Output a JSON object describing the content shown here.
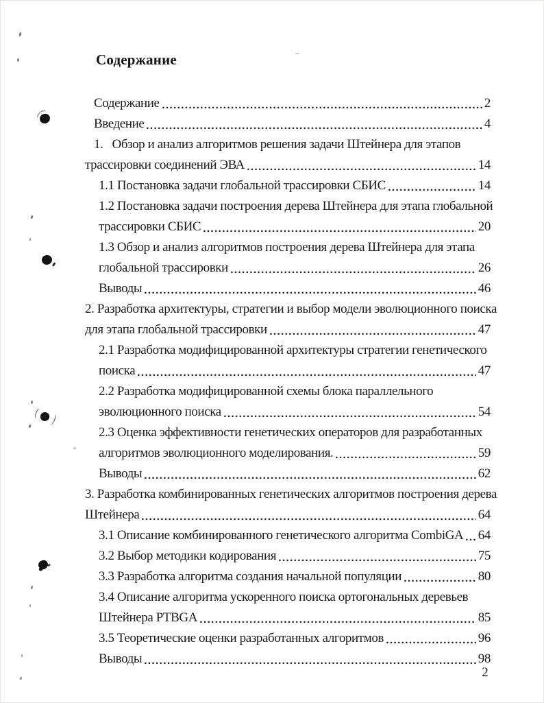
{
  "document": {
    "heading": "Содержание",
    "footer_page_number": "2"
  },
  "toc": {
    "lines": [
      {
        "text": "Содержание",
        "page": "2",
        "indent": "chapter_first"
      },
      {
        "text": "Введение",
        "page": "4",
        "indent": "chapter_first"
      },
      {
        "text": "1.   Обзор и анализ алгоритмов решения задачи Штейнера для этапов",
        "indent": "chapter_first"
      },
      {
        "text": "трассировки соединений ЭВА",
        "page": "14",
        "indent": "chapter"
      },
      {
        "text": "1.1 Постановка задачи глобальной трассировки СБИС",
        "page": "14",
        "indent": "sub"
      },
      {
        "text": "1.2 Постановка задачи построения дерева Штейнера для этапа глобальной",
        "indent": "sub"
      },
      {
        "text": "трассировки СБИС",
        "page": "20",
        "indent": "sub"
      },
      {
        "text": "1.3 Обзор и анализ алгоритмов построения дерева Штейнера для этапа",
        "indent": "sub"
      },
      {
        "text": "глобальной трассировки",
        "page": "26",
        "indent": "sub"
      },
      {
        "text": "Выводы",
        "page": "46",
        "indent": "sub"
      },
      {
        "text": "2. Разработка архитектуры, стратегии и выбор модели эволюционного поиска",
        "indent": "chapter"
      },
      {
        "text": "для этапа глобальной трассировки",
        "page": "47",
        "indent": "chapter"
      },
      {
        "text": "2.1 Разработка модифицированной архитектуры стратегии генетического",
        "indent": "sub"
      },
      {
        "text": "поиска",
        "page": "47",
        "indent": "sub"
      },
      {
        "text": "2.2 Разработка модифицированной схемы блока параллельного",
        "indent": "sub"
      },
      {
        "text": "эволюционного поиска",
        "page": "54",
        "indent": "sub"
      },
      {
        "text": "2.3 Оценка эффективности генетических операторов для разработанных",
        "indent": "sub"
      },
      {
        "text": "алгоритмов эволюционного моделирования.",
        "page": "59",
        "indent": "sub"
      },
      {
        "text": "Выводы",
        "page": "62",
        "indent": "sub"
      },
      {
        "text": "3. Разработка комбинированных генетических алгоритмов построения дерева",
        "indent": "chapter"
      },
      {
        "text": "Штейнера",
        "page": "64",
        "indent": "chapter"
      },
      {
        "text": "3.1 Описание комбинированного генетического алгоритма CombiGA",
        "page": "64",
        "indent": "sub"
      },
      {
        "text": "3.2 Выбор методики кодирования",
        "page": "75",
        "indent": "sub"
      },
      {
        "text": "3.3 Разработка алгоритма создания начальной популяции",
        "page": "80",
        "indent": "sub"
      },
      {
        "text": "3.4 Описание алгоритма ускоренного поиска ортогональных деревьев",
        "indent": "sub"
      },
      {
        "text": "Штейнера PTBGA",
        "page": "85",
        "indent": "sub"
      },
      {
        "text": "3.5 Теоретические оценки разработанных алгоритмов",
        "page": "96",
        "indent": "sub"
      },
      {
        "text": "Выводы",
        "page": "98",
        "indent": "sub"
      }
    ]
  }
}
